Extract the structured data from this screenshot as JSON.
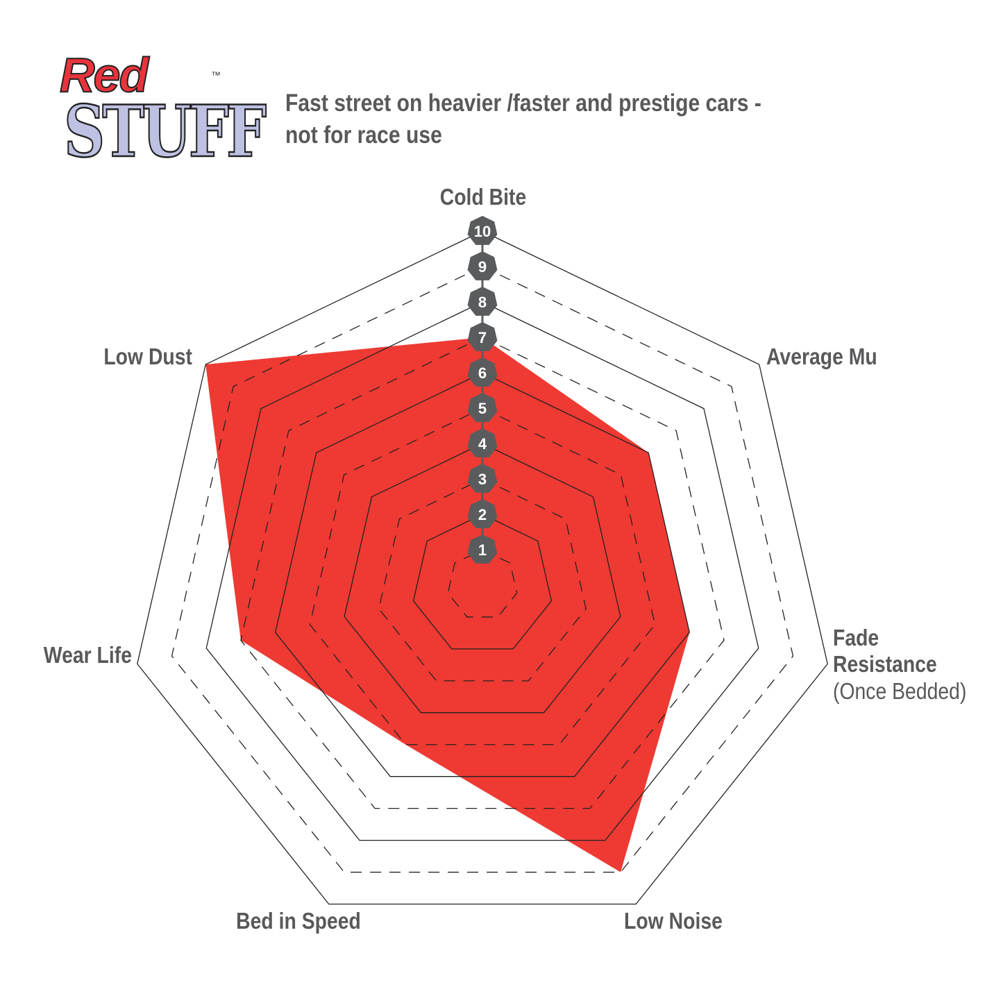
{
  "logo": {
    "word1": "Red",
    "word2": "STUFF",
    "tm": "™"
  },
  "header": {
    "line1": "Fast street on heavier /faster and prestige cars -",
    "line2": "not for race use"
  },
  "chart_data": {
    "type": "radar",
    "axes": [
      "Cold Bite",
      "Average Mu",
      "Fade Resistance",
      "Low Noise",
      "Bed in Speed",
      "Wear Life",
      "Low Dust"
    ],
    "axis_sublabels": {
      "Fade Resistance": "(Once Bedded)"
    },
    "values": [
      7,
      6,
      6,
      9,
      5,
      7,
      10
    ],
    "range": [
      0,
      10
    ],
    "scale_labels": [
      "1",
      "2",
      "3",
      "4",
      "5",
      "6",
      "7",
      "8",
      "9",
      "10"
    ],
    "fill_color": "#ee3a33",
    "marker_color": "#5a5b5d",
    "text_color": "#58595b"
  }
}
